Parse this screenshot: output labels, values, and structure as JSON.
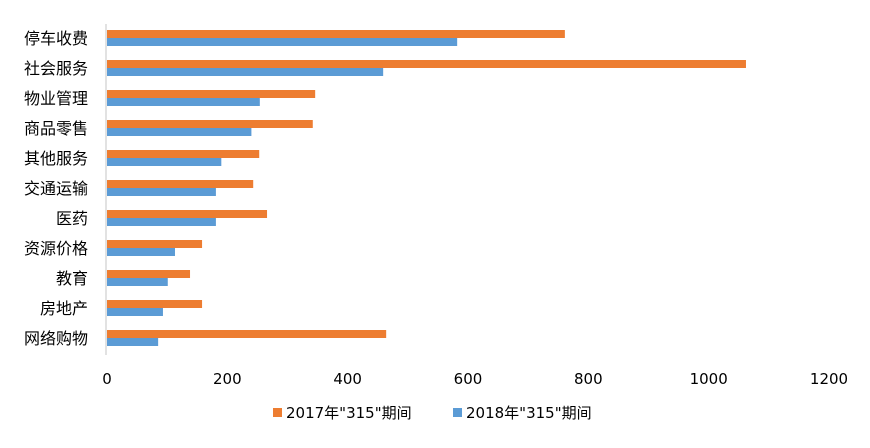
{
  "chart_data": {
    "type": "bar",
    "orientation": "horizontal",
    "categories": [
      "停车收费",
      "社会服务",
      "物业管理",
      "商品零售",
      "其他服务",
      "交通运输",
      "医药",
      "资源价格",
      "教育",
      "房地产",
      "网络购物"
    ],
    "series": [
      {
        "name": "2017年\"315\"期间",
        "color": "#ED7D31",
        "values": [
          761,
          1062,
          346,
          342,
          253,
          243,
          266,
          158,
          138,
          158,
          464
        ]
      },
      {
        "name": "2018年\"315\"期间",
        "color": "#5B9BD5",
        "values": [
          582,
          459,
          254,
          240,
          190,
          181,
          181,
          113,
          101,
          93,
          85
        ]
      }
    ],
    "xlim": [
      0,
      1200
    ],
    "xticks": [
      "0",
      "200",
      "400",
      "600",
      "800",
      "1000",
      "1200"
    ],
    "grid": false,
    "legend": "bottom"
  }
}
